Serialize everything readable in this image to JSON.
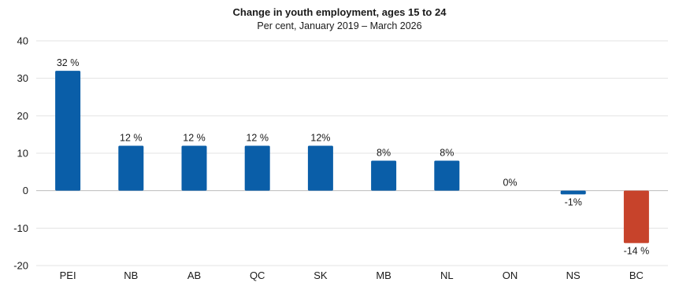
{
  "colors": {
    "positive": "#0a5ea8",
    "negative": "#c7432b",
    "text": "#1a1a1a",
    "grid": "#e3e3e3"
  },
  "chart_data": {
    "type": "bar",
    "title": "Change in youth employment, ages 15 to 24",
    "subtitle": "Per cent, January 2019 – March 2026",
    "xlabel": "",
    "ylabel": "",
    "ylim": [
      -20,
      40
    ],
    "yticks": [
      40,
      30,
      20,
      10,
      0,
      -10,
      -20
    ],
    "grid": true,
    "legend": "none",
    "categories": [
      "PEI",
      "NB",
      "AB",
      "QC",
      "SK",
      "MB",
      "NL",
      "ON",
      "NS",
      "BC"
    ],
    "values": [
      32,
      12,
      12,
      12,
      12,
      8,
      8,
      0,
      -1,
      -14
    ],
    "data_labels": [
      "32 %",
      "12 %",
      "12 %",
      "12 %",
      "12%",
      "8%",
      "8%",
      "0%",
      "-1%",
      "-14 %"
    ],
    "bar_colors": [
      "#0a5ea8",
      "#0a5ea8",
      "#0a5ea8",
      "#0a5ea8",
      "#0a5ea8",
      "#0a5ea8",
      "#0a5ea8",
      "#0a5ea8",
      "#0a5ea8",
      "#c7432b"
    ]
  }
}
